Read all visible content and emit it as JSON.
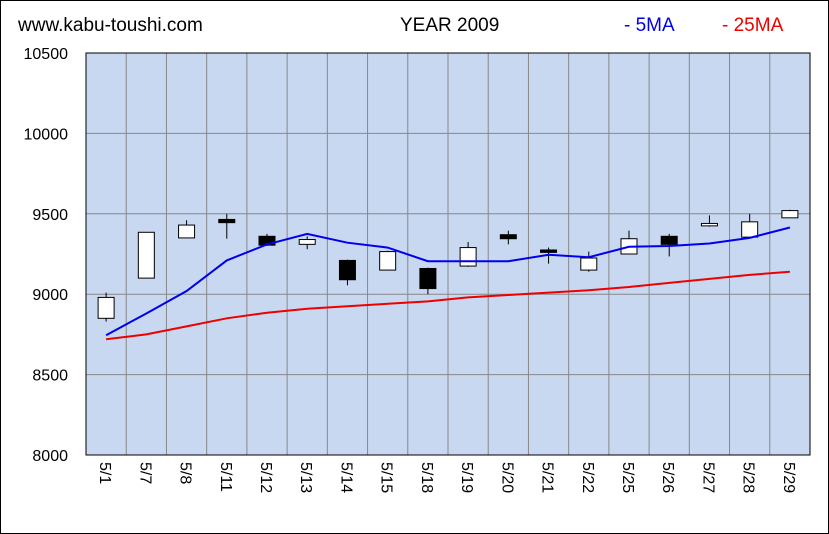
{
  "header": {
    "site": "www.kabu-toushi.com",
    "title": "YEAR 2009"
  },
  "chart_data": {
    "type": "candlestick",
    "title": "YEAR 2009",
    "ylim": [
      8000,
      10500
    ],
    "yticks": [
      8000,
      8500,
      9000,
      9500,
      10000,
      10500
    ],
    "grid": true,
    "legend": {
      "placement": "top-right",
      "entries": [
        {
          "label": "- 5MA",
          "color": "#0000ee"
        },
        {
          "label": "- 25MA",
          "color": "#ee0000"
        }
      ]
    },
    "colors": {
      "plot_bg": "#c8d8f0",
      "grid": "#888888",
      "up": "#ffffff",
      "down": "#000000",
      "ma5": "#0000ee",
      "ma25": "#ee0000"
    },
    "categories": [
      "5/1",
      "5/7",
      "5/8",
      "5/11",
      "5/12",
      "5/13",
      "5/14",
      "5/15",
      "5/18",
      "5/19",
      "5/20",
      "5/21",
      "5/22",
      "5/25",
      "5/26",
      "5/27",
      "5/28",
      "5/29"
    ],
    "ohlc": [
      {
        "open": 8850,
        "high": 9010,
        "low": 8830,
        "close": 8980
      },
      {
        "open": 9100,
        "high": 9385,
        "low": 9100,
        "close": 9385
      },
      {
        "open": 9350,
        "high": 9460,
        "low": 9350,
        "close": 9430
      },
      {
        "open": 9465,
        "high": 9500,
        "low": 9345,
        "close": 9445
      },
      {
        "open": 9360,
        "high": 9375,
        "low": 9300,
        "close": 9305
      },
      {
        "open": 9310,
        "high": 9360,
        "low": 9280,
        "close": 9340
      },
      {
        "open": 9210,
        "high": 9215,
        "low": 9055,
        "close": 9090
      },
      {
        "open": 9150,
        "high": 9270,
        "low": 9150,
        "close": 9265
      },
      {
        "open": 9160,
        "high": 9165,
        "low": 9000,
        "close": 9035
      },
      {
        "open": 9175,
        "high": 9325,
        "low": 9170,
        "close": 9290
      },
      {
        "open": 9370,
        "high": 9395,
        "low": 9310,
        "close": 9345
      },
      {
        "open": 9275,
        "high": 9290,
        "low": 9190,
        "close": 9260
      },
      {
        "open": 9150,
        "high": 9265,
        "low": 9140,
        "close": 9225
      },
      {
        "open": 9250,
        "high": 9395,
        "low": 9250,
        "close": 9345
      },
      {
        "open": 9360,
        "high": 9375,
        "low": 9235,
        "close": 9310
      },
      {
        "open": 9425,
        "high": 9490,
        "low": 9420,
        "close": 9440
      },
      {
        "open": 9355,
        "high": 9500,
        "low": 9355,
        "close": 9450
      },
      {
        "open": 9475,
        "high": 9525,
        "low": 9475,
        "close": 9520
      }
    ],
    "series": [
      {
        "name": "5MA",
        "values": [
          8745,
          8880,
          9020,
          9210,
          9310,
          9375,
          9320,
          9290,
          9205,
          9205,
          9205,
          9245,
          9230,
          9295,
          9300,
          9315,
          9350,
          9415
        ]
      },
      {
        "name": "25MA",
        "values": [
          8720,
          8750,
          8800,
          8850,
          8885,
          8910,
          8925,
          8940,
          8955,
          8980,
          8995,
          9010,
          9025,
          9045,
          9070,
          9095,
          9120,
          9140
        ]
      }
    ]
  }
}
